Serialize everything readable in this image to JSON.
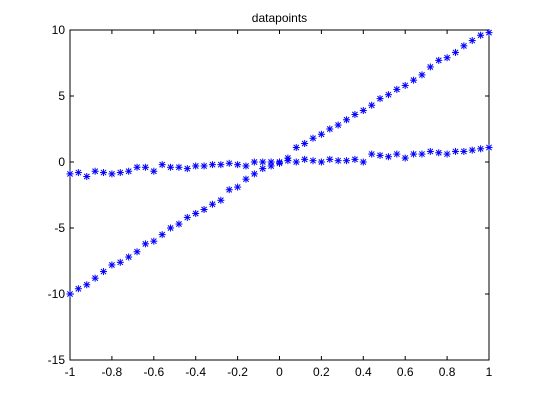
{
  "chart_data": {
    "type": "scatter",
    "title": "datapoints",
    "xlabel": "",
    "ylabel": "",
    "xlim": [
      -1,
      1
    ],
    "ylim": [
      -15,
      10
    ],
    "grid": false,
    "legend": "none",
    "marker": "*",
    "marker_color": "#0000ff",
    "x_ticks": [
      -1,
      -0.8,
      -0.6,
      -0.4,
      -0.2,
      0,
      0.2,
      0.4,
      0.6,
      0.8,
      1
    ],
    "x_tick_labels": [
      "-1",
      "-0.8",
      "-0.6",
      "-0.4",
      "-0.2",
      "0",
      "0.2",
      "0.4",
      "0.6",
      "0.8",
      "1"
    ],
    "y_ticks": [
      -15,
      -10,
      -5,
      0,
      5,
      10
    ],
    "y_tick_labels": [
      "-15",
      "-10",
      "-5",
      "0",
      "5",
      "10"
    ],
    "series": [
      {
        "x": [
          -1.0,
          -0.96,
          -0.92,
          -0.88,
          -0.84,
          -0.8,
          -0.76,
          -0.72,
          -0.68,
          -0.64,
          -0.6,
          -0.56,
          -0.52,
          -0.48,
          -0.44,
          -0.4,
          -0.36,
          -0.32,
          -0.28,
          -0.24,
          -0.2,
          -0.16,
          -0.12,
          -0.08,
          -0.04,
          0.0,
          0.04,
          0.08,
          0.12,
          0.16,
          0.2,
          0.24,
          0.28,
          0.32,
          0.36,
          0.4,
          0.44,
          0.48,
          0.52,
          0.56,
          0.6,
          0.64,
          0.68,
          0.72,
          0.76,
          0.8,
          0.84,
          0.88,
          0.92,
          0.96,
          1.0
        ],
        "y": [
          -10.0,
          -9.6,
          -9.3,
          -8.8,
          -8.3,
          -7.8,
          -7.6,
          -7.2,
          -6.8,
          -6.2,
          -6.0,
          -5.5,
          -5.0,
          -4.7,
          -4.2,
          -3.9,
          -3.6,
          -3.2,
          -2.9,
          -2.1,
          -1.9,
          -1.3,
          -0.9,
          -0.5,
          -0.3,
          0.0,
          0.3,
          1.1,
          1.4,
          1.8,
          2.1,
          2.5,
          2.8,
          3.2,
          3.6,
          3.9,
          4.3,
          4.8,
          5.1,
          5.5,
          5.8,
          6.2,
          6.6,
          7.2,
          7.7,
          7.9,
          8.3,
          8.8,
          9.2,
          9.6,
          9.8
        ]
      },
      {
        "x": [
          -1.0,
          -0.96,
          -0.92,
          -0.88,
          -0.84,
          -0.8,
          -0.76,
          -0.72,
          -0.68,
          -0.64,
          -0.6,
          -0.56,
          -0.52,
          -0.48,
          -0.44,
          -0.4,
          -0.36,
          -0.32,
          -0.28,
          -0.24,
          -0.2,
          -0.16,
          -0.12,
          -0.08,
          -0.04,
          0.0,
          0.04,
          0.08,
          0.12,
          0.16,
          0.2,
          0.24,
          0.28,
          0.32,
          0.36,
          0.4,
          0.44,
          0.48,
          0.52,
          0.56,
          0.6,
          0.64,
          0.68,
          0.72,
          0.76,
          0.8,
          0.84,
          0.88,
          0.92,
          0.96,
          1.0
        ],
        "y": [
          -0.9,
          -0.8,
          -1.1,
          -0.7,
          -0.8,
          -0.9,
          -0.8,
          -0.7,
          -0.4,
          -0.4,
          -0.7,
          -0.2,
          -0.4,
          -0.4,
          -0.5,
          -0.3,
          -0.3,
          -0.2,
          -0.2,
          -0.1,
          -0.2,
          -0.3,
          0.0,
          0.0,
          0.0,
          -0.1,
          0.1,
          0.0,
          0.2,
          0.1,
          0.0,
          0.2,
          0.1,
          0.1,
          0.2,
          0.0,
          0.6,
          0.5,
          0.4,
          0.6,
          0.3,
          0.6,
          0.6,
          0.8,
          0.7,
          0.6,
          0.8,
          0.8,
          0.9,
          1.0,
          1.1
        ]
      }
    ]
  }
}
